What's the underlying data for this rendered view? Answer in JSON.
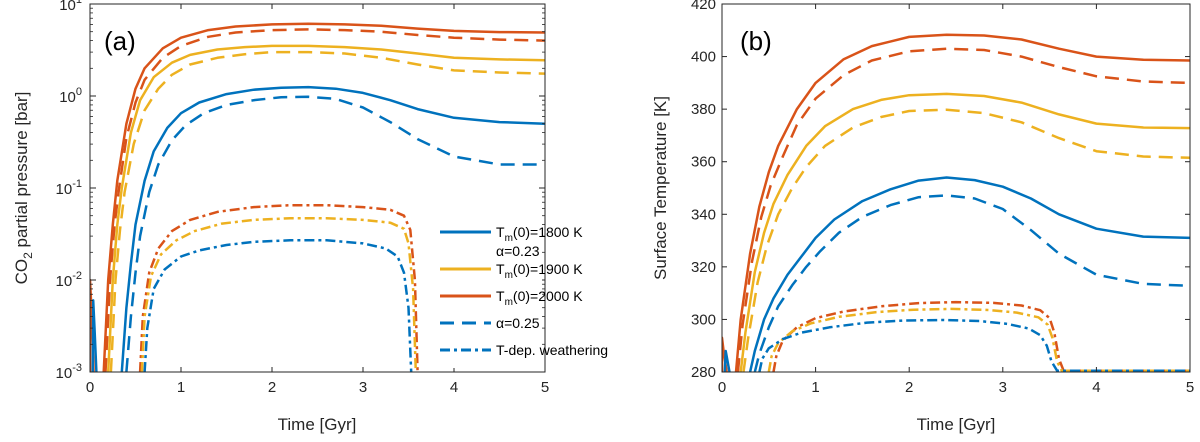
{
  "colors": {
    "blue": "#0072BD",
    "yellow": "#EDB120",
    "red": "#D95319",
    "black": "#000000"
  },
  "chart_data": [
    {
      "type": "line",
      "panel_label": "(a)",
      "xlabel": "Time [Gyr]",
      "ylabel_prefix": "CO",
      "ylabel_sub": "2",
      "ylabel_suffix": " partial pressure [bar]",
      "yscale": "log",
      "xlim": [
        0,
        5
      ],
      "ylim": [
        0.001,
        10
      ],
      "xticks": [
        0,
        1,
        2,
        3,
        4,
        5
      ],
      "yticks": [
        {
          "value": 0.001,
          "label": "10",
          "exp": "-3"
        },
        {
          "value": 0.01,
          "label": "10",
          "exp": "-2"
        },
        {
          "value": 0.1,
          "label": "10",
          "exp": "-1"
        },
        {
          "value": 1,
          "label": "10",
          "exp": "0"
        },
        {
          "value": 10,
          "label": "10",
          "exp": "1"
        }
      ],
      "legend": {
        "position": "center-right",
        "entries": [
          {
            "style": "solid",
            "color": "blue",
            "text": "T",
            "sub": "m",
            "rest": "(0)=1800 K",
            "text2": "α=0.23"
          },
          {
            "style": "solid",
            "color": "yellow",
            "text": "T",
            "sub": "m",
            "rest": "(0)=1900 K"
          },
          {
            "style": "solid",
            "color": "red",
            "text": "T",
            "sub": "m",
            "rest": "(0)=2000 K"
          },
          {
            "style": "dashed",
            "color": "blue",
            "text": "α=0.25"
          },
          {
            "style": "dashdot",
            "color": "blue",
            "text": "T-dep. weathering"
          }
        ]
      },
      "series": [
        {
          "name": "Tm(0)=2000 K α=0.23",
          "color": "red",
          "style": "solid",
          "x": [
            0.15,
            0.2,
            0.25,
            0.3,
            0.4,
            0.5,
            0.6,
            0.8,
            1.0,
            1.3,
            1.6,
            2.0,
            2.4,
            2.8,
            3.2,
            3.6,
            4.0,
            4.5,
            5.0
          ],
          "y": [
            0.001,
            0.01,
            0.04,
            0.12,
            0.5,
            1.2,
            2.0,
            3.3,
            4.3,
            5.2,
            5.7,
            6.0,
            6.1,
            6.0,
            5.8,
            5.4,
            5.1,
            4.95,
            4.9
          ]
        },
        {
          "name": "Tm(0)=2000 K α=0.25",
          "color": "red",
          "style": "dashed",
          "x": [
            0.17,
            0.22,
            0.27,
            0.32,
            0.4,
            0.5,
            0.6,
            0.8,
            1.0,
            1.3,
            1.6,
            2.0,
            2.4,
            2.8,
            3.2,
            3.6,
            4.0,
            4.5,
            5.0
          ],
          "y": [
            0.001,
            0.01,
            0.04,
            0.1,
            0.35,
            0.85,
            1.5,
            2.6,
            3.5,
            4.4,
            4.9,
            5.2,
            5.3,
            5.2,
            5.0,
            4.6,
            4.3,
            4.1,
            4.0
          ]
        },
        {
          "name": "Tm(0)=1900 K α=0.23",
          "color": "yellow",
          "style": "solid",
          "x": [
            0.2,
            0.25,
            0.3,
            0.35,
            0.45,
            0.55,
            0.7,
            0.9,
            1.1,
            1.4,
            1.7,
            2.0,
            2.4,
            2.8,
            3.2,
            3.6,
            4.0,
            4.5,
            5.0
          ],
          "y": [
            0.001,
            0.01,
            0.04,
            0.1,
            0.4,
            0.9,
            1.6,
            2.3,
            2.8,
            3.2,
            3.4,
            3.5,
            3.5,
            3.4,
            3.2,
            2.9,
            2.6,
            2.5,
            2.45
          ]
        },
        {
          "name": "Tm(0)=1900 K α=0.25",
          "color": "yellow",
          "style": "dashed",
          "x": [
            0.23,
            0.28,
            0.33,
            0.38,
            0.48,
            0.6,
            0.75,
            0.9,
            1.1,
            1.4,
            1.7,
            2.0,
            2.4,
            2.8,
            3.2,
            3.6,
            4.0,
            4.5,
            5.0
          ],
          "y": [
            0.001,
            0.01,
            0.035,
            0.09,
            0.3,
            0.7,
            1.2,
            1.7,
            2.2,
            2.6,
            2.85,
            3.0,
            3.0,
            2.9,
            2.6,
            2.2,
            1.9,
            1.8,
            1.75
          ]
        },
        {
          "name": "Tm(0)=1800 K α=0.23",
          "color": "blue",
          "style": "solid",
          "x": [
            0.35,
            0.4,
            0.45,
            0.5,
            0.6,
            0.7,
            0.85,
            1.0,
            1.2,
            1.5,
            1.8,
            2.1,
            2.4,
            2.7,
            3.0,
            3.3,
            3.6,
            4.0,
            4.5,
            5.0
          ],
          "y": [
            0.001,
            0.005,
            0.015,
            0.04,
            0.12,
            0.25,
            0.45,
            0.65,
            0.85,
            1.05,
            1.17,
            1.23,
            1.25,
            1.2,
            1.08,
            0.9,
            0.72,
            0.58,
            0.52,
            0.5
          ]
        },
        {
          "name": "Tm(0)=1800 K α=0.25",
          "color": "blue",
          "style": "dashed",
          "x": [
            0.4,
            0.45,
            0.5,
            0.55,
            0.65,
            0.75,
            0.9,
            1.05,
            1.25,
            1.5,
            1.8,
            2.1,
            2.4,
            2.7,
            3.0,
            3.3,
            3.6,
            4.0,
            4.5,
            5.0
          ],
          "y": [
            0.001,
            0.004,
            0.012,
            0.03,
            0.09,
            0.18,
            0.33,
            0.48,
            0.65,
            0.8,
            0.9,
            0.97,
            0.98,
            0.93,
            0.75,
            0.52,
            0.34,
            0.22,
            0.18,
            0.18
          ]
        },
        {
          "name": "T-dep. weathering Tm(0)=2000 K",
          "color": "red",
          "style": "dashdot",
          "x": [
            0.55,
            0.58,
            0.65,
            0.75,
            0.9,
            1.1,
            1.4,
            1.8,
            2.2,
            2.6,
            3.0,
            3.3,
            3.45,
            3.52,
            3.57,
            3.6
          ],
          "y": [
            0.001,
            0.004,
            0.012,
            0.022,
            0.034,
            0.045,
            0.055,
            0.062,
            0.065,
            0.065,
            0.062,
            0.058,
            0.05,
            0.035,
            0.01,
            0.001
          ]
        },
        {
          "name": "T-dep. weathering Tm(0)=1900 K",
          "color": "yellow",
          "style": "dashdot",
          "x": [
            0.57,
            0.6,
            0.67,
            0.78,
            0.95,
            1.15,
            1.45,
            1.8,
            2.2,
            2.6,
            3.0,
            3.3,
            3.45,
            3.5,
            3.55,
            3.58
          ],
          "y": [
            0.001,
            0.004,
            0.011,
            0.019,
            0.027,
            0.034,
            0.041,
            0.045,
            0.047,
            0.047,
            0.045,
            0.042,
            0.036,
            0.025,
            0.008,
            0.001
          ]
        },
        {
          "name": "T-dep. weathering Tm(0)=1800 K",
          "color": "blue",
          "style": "dashdot",
          "x": [
            0.6,
            0.63,
            0.7,
            0.82,
            1.0,
            1.2,
            1.5,
            1.8,
            2.2,
            2.6,
            3.0,
            3.25,
            3.38,
            3.45,
            3.5,
            3.53
          ],
          "y": [
            0.001,
            0.003,
            0.008,
            0.013,
            0.018,
            0.021,
            0.024,
            0.026,
            0.027,
            0.027,
            0.025,
            0.022,
            0.018,
            0.012,
            0.005,
            0.001
          ]
        },
        {
          "name": "initial spike",
          "color": "red",
          "style": "solid",
          "x": [
            0.0,
            0.0,
            0.02,
            0.04
          ],
          "y": [
            0.001,
            0.01,
            0.004,
            0.001
          ]
        },
        {
          "name": "initial spike",
          "color": "blue",
          "style": "solid",
          "x": [
            0.03,
            0.035,
            0.05,
            0.07
          ],
          "y": [
            0.001,
            0.006,
            0.003,
            0.001
          ]
        }
      ]
    },
    {
      "type": "line",
      "panel_label": "(b)",
      "xlabel": "Time [Gyr]",
      "ylabel": "Surface Temperature [K]",
      "yscale": "linear",
      "xlim": [
        0,
        5
      ],
      "ylim": [
        280,
        420
      ],
      "xticks": [
        0,
        1,
        2,
        3,
        4,
        5
      ],
      "yticks": [
        280,
        300,
        320,
        340,
        360,
        380,
        400,
        420
      ],
      "series": [
        {
          "name": "Tm(0)=2000 K α=0.23",
          "color": "red",
          "style": "solid",
          "x": [
            0.15,
            0.2,
            0.3,
            0.4,
            0.5,
            0.6,
            0.8,
            1.0,
            1.3,
            1.6,
            2.0,
            2.4,
            2.8,
            3.2,
            3.6,
            4.0,
            4.5,
            5.0
          ],
          "y": [
            280,
            300,
            325,
            343,
            356,
            366,
            380,
            390,
            399,
            404,
            407.5,
            408.3,
            408,
            406.5,
            403,
            400,
            398.8,
            398.5
          ]
        },
        {
          "name": "Tm(0)=2000 K α=0.25",
          "color": "red",
          "style": "dashed",
          "x": [
            0.17,
            0.22,
            0.32,
            0.42,
            0.52,
            0.65,
            0.8,
            1.0,
            1.3,
            1.6,
            2.0,
            2.4,
            2.8,
            3.2,
            3.6,
            4.0,
            4.5,
            5.0
          ],
          "y": [
            280,
            298,
            322,
            339,
            351,
            362,
            374,
            384,
            393,
            398.5,
            402,
            403,
            402.5,
            400,
            396,
            392.5,
            390.5,
            390
          ]
        },
        {
          "name": "Tm(0)=1900 K α=0.23",
          "color": "yellow",
          "style": "solid",
          "x": [
            0.2,
            0.25,
            0.35,
            0.45,
            0.55,
            0.7,
            0.9,
            1.1,
            1.4,
            1.7,
            2.0,
            2.4,
            2.8,
            3.2,
            3.6,
            4.0,
            4.5,
            5.0
          ],
          "y": [
            280,
            295,
            318,
            333,
            344,
            355,
            366,
            373.5,
            380,
            383.5,
            385.3,
            385.8,
            385,
            382.5,
            378,
            374.5,
            373,
            372.8
          ]
        },
        {
          "name": "Tm(0)=1900 K α=0.25",
          "color": "yellow",
          "style": "dashed",
          "x": [
            0.23,
            0.28,
            0.38,
            0.48,
            0.6,
            0.75,
            0.9,
            1.1,
            1.4,
            1.7,
            2.0,
            2.4,
            2.8,
            3.2,
            3.6,
            4.0,
            4.5,
            5.0
          ],
          "y": [
            280,
            293,
            314,
            328,
            340,
            350,
            358,
            366,
            373,
            377,
            379.3,
            379.8,
            378.5,
            375,
            369,
            364,
            362,
            361.5
          ]
        },
        {
          "name": "Tm(0)=1800 K α=0.23",
          "color": "blue",
          "style": "solid",
          "x": [
            0.3,
            0.35,
            0.45,
            0.55,
            0.7,
            0.85,
            1.0,
            1.2,
            1.5,
            1.8,
            2.1,
            2.4,
            2.7,
            3.0,
            3.3,
            3.6,
            4.0,
            4.5,
            5.0
          ],
          "y": [
            280,
            288,
            300,
            308,
            317,
            324,
            331,
            338,
            345,
            349.5,
            352.8,
            354,
            353,
            350.5,
            346,
            340,
            334.5,
            331.5,
            331
          ]
        },
        {
          "name": "Tm(0)=1800 K α=0.25",
          "color": "blue",
          "style": "dashed",
          "x": [
            0.35,
            0.4,
            0.5,
            0.6,
            0.75,
            0.9,
            1.05,
            1.25,
            1.5,
            1.8,
            2.1,
            2.4,
            2.7,
            3.0,
            3.3,
            3.6,
            4.0,
            4.5,
            5.0
          ],
          "y": [
            280,
            287,
            297,
            305,
            313,
            320,
            326,
            333,
            339,
            343.5,
            346.5,
            347.2,
            346,
            342,
            334,
            325,
            317,
            313.5,
            312.8
          ]
        },
        {
          "name": "T-dep. weathering Tm(0)=2000 K",
          "color": "red",
          "style": "dashdot",
          "x": [
            0.55,
            0.58,
            0.65,
            0.8,
            1.0,
            1.3,
            1.7,
            2.1,
            2.5,
            2.9,
            3.2,
            3.4,
            3.5,
            3.55,
            3.6,
            3.65,
            5.0
          ],
          "y": [
            280,
            286,
            292,
            297,
            300.5,
            303,
            305,
            306.2,
            306.6,
            306.3,
            305.3,
            303.5,
            300.5,
            295,
            285,
            280.5,
            280.5
          ]
        },
        {
          "name": "T-dep. weathering Tm(0)=1900 K",
          "color": "yellow",
          "style": "dashdot",
          "x": [
            0.5,
            0.53,
            0.6,
            0.75,
            0.95,
            1.25,
            1.65,
            2.05,
            2.45,
            2.85,
            3.15,
            3.38,
            3.48,
            3.53,
            3.58,
            3.63,
            5.0
          ],
          "y": [
            280,
            286,
            291,
            295.5,
            298.5,
            301,
            302.8,
            303.7,
            304,
            303.6,
            302.6,
            300.8,
            298,
            293,
            284,
            280.5,
            280.5
          ]
        },
        {
          "name": "T-dep. weathering Tm(0)=1800 K",
          "color": "blue",
          "style": "dashdot",
          "x": [
            0.4,
            0.43,
            0.5,
            0.65,
            0.85,
            1.15,
            1.55,
            1.95,
            2.35,
            2.75,
            3.05,
            3.28,
            3.4,
            3.47,
            3.52,
            3.58,
            5.0
          ],
          "y": [
            280,
            285,
            289,
            292.5,
            295,
            297,
            298.8,
            299.6,
            299.8,
            299.4,
            298.3,
            296.5,
            294,
            290,
            284,
            280.5,
            280.5
          ]
        },
        {
          "name": "initial spike",
          "color": "red",
          "style": "solid",
          "x": [
            0.0,
            0.0,
            0.02,
            0.05
          ],
          "y": [
            280,
            293,
            287,
            280
          ]
        },
        {
          "name": "initial spike",
          "color": "blue",
          "style": "solid",
          "x": [
            0.03,
            0.04,
            0.06,
            0.08
          ],
          "y": [
            280,
            288,
            284,
            280
          ]
        }
      ]
    }
  ]
}
